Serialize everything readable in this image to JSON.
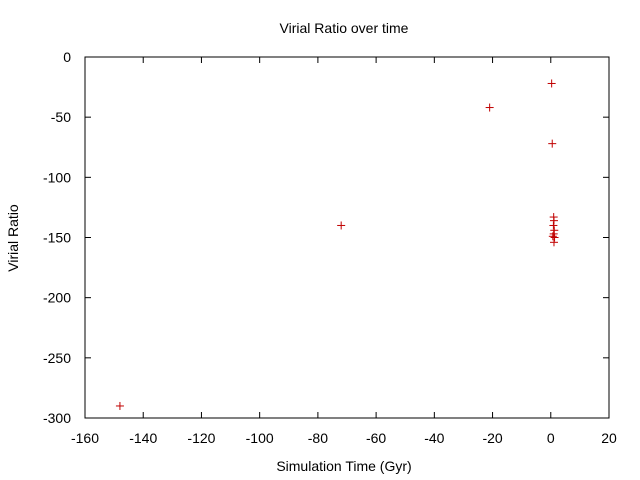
{
  "chart_data": {
    "type": "scatter",
    "title": "Virial Ratio over time",
    "xlabel": "Simulation Time (Gyr)",
    "ylabel": "Virial Ratio",
    "xlim": [
      -160,
      20
    ],
    "ylim": [
      -300,
      0
    ],
    "xticks": [
      -160,
      -140,
      -120,
      -100,
      -80,
      -60,
      -40,
      -20,
      0,
      20
    ],
    "yticks": [
      0,
      -50,
      -100,
      -150,
      -200,
      -250,
      -300
    ],
    "grid": false,
    "legend": "none",
    "marker": "+",
    "color": "#c00000",
    "series": [
      {
        "points": [
          [
            -148,
            -290
          ],
          [
            -72,
            -140
          ],
          [
            -21,
            -42
          ],
          [
            0.3,
            -22
          ],
          [
            0.5,
            -72
          ],
          [
            1.0,
            -133
          ],
          [
            1.1,
            -136
          ],
          [
            0.9,
            -140
          ],
          [
            1.2,
            -144
          ],
          [
            1.0,
            -147
          ],
          [
            0.7,
            -149
          ],
          [
            1.3,
            -150
          ],
          [
            1.1,
            -154
          ]
        ]
      }
    ]
  }
}
